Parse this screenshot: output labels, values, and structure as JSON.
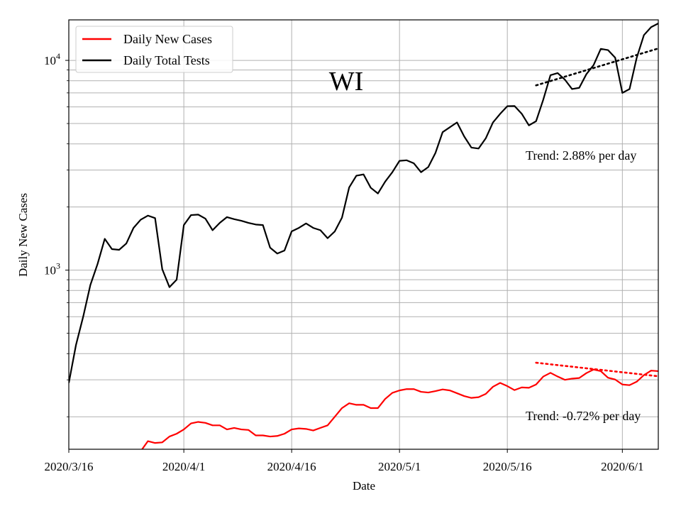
{
  "chart_data": {
    "type": "line",
    "title": "WI",
    "xlabel": "Date",
    "ylabel": "Daily New Cases",
    "y_scale": "log",
    "ylim": [
      140,
      15600
    ],
    "xlim": [
      "2020-03-16",
      "2020-06-06"
    ],
    "grid": true,
    "grid_minor_y": true,
    "legend_position": "upper-left",
    "x_ticks": [
      {
        "date": "2020-03-16",
        "label": "2020/3/16"
      },
      {
        "date": "2020-04-01",
        "label": "2020/4/1"
      },
      {
        "date": "2020-04-16",
        "label": "2020/4/16"
      },
      {
        "date": "2020-05-01",
        "label": "2020/5/1"
      },
      {
        "date": "2020-05-16",
        "label": "2020/5/16"
      },
      {
        "date": "2020-06-01",
        "label": "2020/6/1"
      }
    ],
    "y_ticks": [
      {
        "value": 1000,
        "base": "10",
        "exp": "3"
      },
      {
        "value": 10000,
        "base": "10",
        "exp": "4"
      }
    ],
    "x": [
      "2020-03-16",
      "2020-03-17",
      "2020-03-18",
      "2020-03-19",
      "2020-03-20",
      "2020-03-21",
      "2020-03-22",
      "2020-03-23",
      "2020-03-24",
      "2020-03-25",
      "2020-03-26",
      "2020-03-27",
      "2020-03-28",
      "2020-03-29",
      "2020-03-30",
      "2020-03-31",
      "2020-04-01",
      "2020-04-02",
      "2020-04-03",
      "2020-04-04",
      "2020-04-05",
      "2020-04-06",
      "2020-04-07",
      "2020-04-08",
      "2020-04-09",
      "2020-04-10",
      "2020-04-11",
      "2020-04-12",
      "2020-04-13",
      "2020-04-14",
      "2020-04-15",
      "2020-04-16",
      "2020-04-17",
      "2020-04-18",
      "2020-04-19",
      "2020-04-20",
      "2020-04-21",
      "2020-04-22",
      "2020-04-23",
      "2020-04-24",
      "2020-04-25",
      "2020-04-26",
      "2020-04-27",
      "2020-04-28",
      "2020-04-29",
      "2020-04-30",
      "2020-05-01",
      "2020-05-02",
      "2020-05-03",
      "2020-05-04",
      "2020-05-05",
      "2020-05-06",
      "2020-05-07",
      "2020-05-08",
      "2020-05-09",
      "2020-05-10",
      "2020-05-11",
      "2020-05-12",
      "2020-05-13",
      "2020-05-14",
      "2020-05-15",
      "2020-05-16",
      "2020-05-17",
      "2020-05-18",
      "2020-05-19",
      "2020-05-20",
      "2020-05-21",
      "2020-05-22",
      "2020-05-23",
      "2020-05-24",
      "2020-05-25",
      "2020-05-26",
      "2020-05-27",
      "2020-05-28",
      "2020-05-29",
      "2020-05-30",
      "2020-05-31",
      "2020-06-01",
      "2020-06-02",
      "2020-06-03",
      "2020-06-04",
      "2020-06-05",
      "2020-06-06"
    ],
    "series": [
      {
        "name": "Daily New Cases",
        "color": "#ff0000",
        "values": [
          null,
          null,
          null,
          null,
          null,
          null,
          null,
          null,
          null,
          null,
          137,
          153,
          150,
          151,
          161,
          166,
          174,
          186,
          189,
          187,
          182,
          182,
          174,
          177,
          174,
          173,
          163,
          163,
          161,
          162,
          166,
          174,
          176,
          175,
          172,
          177,
          182,
          200,
          220,
          232,
          228,
          228,
          220,
          220,
          243,
          260,
          267,
          271,
          271,
          263,
          261,
          265,
          270,
          267,
          259,
          251,
          246,
          248,
          257,
          278,
          290,
          280,
          268,
          276,
          275,
          285,
          311,
          324,
          311,
          300,
          304,
          306,
          323,
          336,
          330,
          307,
          301,
          285,
          283,
          294,
          316,
          332,
          330
        ],
        "trend": {
          "values": [
            362,
            312
          ],
          "label": "Trend: -0.72% per day",
          "color": "#ff0000",
          "from": "2020-05-20",
          "to": "2020-06-06"
        }
      },
      {
        "name": "Daily Total Tests",
        "color": "#000000",
        "values": [
          290,
          440,
          600,
          850,
          1070,
          1410,
          1260,
          1250,
          1340,
          1590,
          1740,
          1820,
          1770,
          1010,
          830,
          900,
          1640,
          1830,
          1840,
          1760,
          1550,
          1680,
          1790,
          1750,
          1720,
          1680,
          1650,
          1640,
          1280,
          1200,
          1240,
          1530,
          1590,
          1670,
          1590,
          1550,
          1420,
          1530,
          1780,
          2480,
          2820,
          2860,
          2470,
          2320,
          2640,
          2930,
          3320,
          3340,
          3230,
          2930,
          3100,
          3620,
          4550,
          4800,
          5060,
          4340,
          3840,
          3800,
          4250,
          5060,
          5560,
          6050,
          6060,
          5570,
          4900,
          5130,
          6500,
          8500,
          8700,
          8100,
          7300,
          7400,
          8600,
          9500,
          11350,
          11200,
          10300,
          7000,
          7300,
          10300,
          13200,
          14400,
          15000
        ],
        "trend": {
          "values": [
            7600,
            11400
          ],
          "label": "Trend: 2.88% per day",
          "color": "#000000",
          "from": "2020-05-20",
          "to": "2020-06-06"
        }
      }
    ]
  }
}
